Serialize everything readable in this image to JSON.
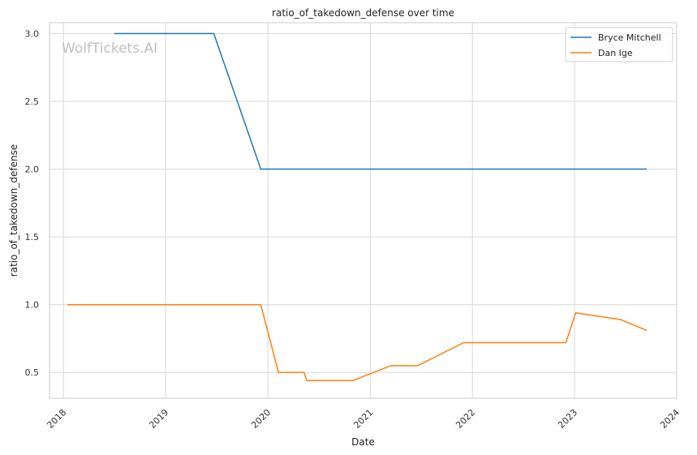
{
  "chart_data": {
    "type": "line",
    "title": "ratio_of_takedown_defense over time",
    "xlabel": "Date",
    "ylabel": "ratio_of_takedown_defense",
    "watermark": "WolfTickets.AI",
    "x_ticks": [
      "2018",
      "2019",
      "2020",
      "2021",
      "2022",
      "2023",
      "2024"
    ],
    "y_ticks": [
      "0.5",
      "1.0",
      "1.5",
      "2.0",
      "2.5",
      "3.0"
    ],
    "xlim": [
      "2017-11-12",
      "2024-01-01"
    ],
    "ylim": [
      0.31,
      3.08
    ],
    "grid": true,
    "legend_position": "top-right",
    "series": [
      {
        "name": "Bryce Mitchell",
        "color": "#1f77b4",
        "points": [
          {
            "x": "2018-07-01",
            "y": 3.0
          },
          {
            "x": "2019-06-22",
            "y": 3.0
          },
          {
            "x": "2019-12-07",
            "y": 2.0
          },
          {
            "x": "2023-09-16",
            "y": 2.0
          }
        ]
      },
      {
        "name": "Dan Ige",
        "color": "#ff7f0e",
        "points": [
          {
            "x": "2018-01-15",
            "y": 1.0
          },
          {
            "x": "2019-12-07",
            "y": 1.0
          },
          {
            "x": "2020-02-08",
            "y": 0.5
          },
          {
            "x": "2020-05-09",
            "y": 0.5
          },
          {
            "x": "2020-05-20",
            "y": 0.44
          },
          {
            "x": "2020-10-30",
            "y": 0.44
          },
          {
            "x": "2021-03-15",
            "y": 0.55
          },
          {
            "x": "2021-06-19",
            "y": 0.55
          },
          {
            "x": "2021-12-01",
            "y": 0.72
          },
          {
            "x": "2022-12-01",
            "y": 0.72
          },
          {
            "x": "2023-01-05",
            "y": 0.94
          },
          {
            "x": "2023-06-15",
            "y": 0.89
          },
          {
            "x": "2023-09-16",
            "y": 0.81
          }
        ]
      }
    ]
  }
}
